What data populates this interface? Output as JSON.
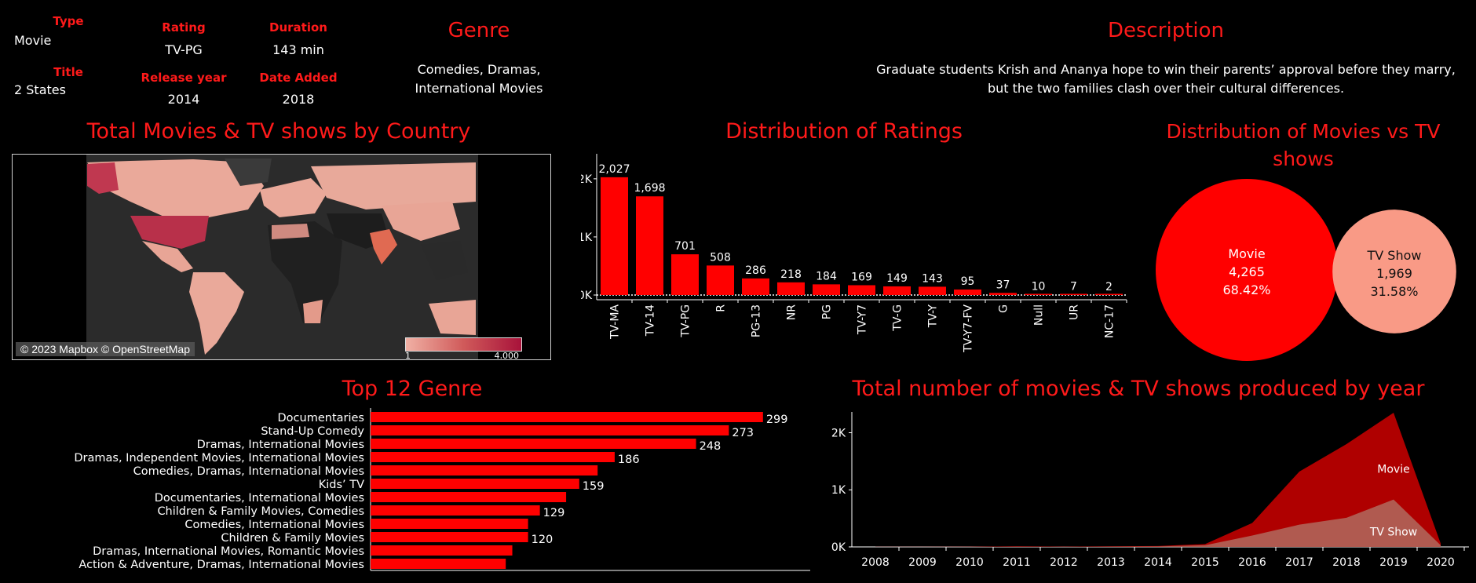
{
  "details": {
    "type": {
      "label": "Type",
      "value": "Movie"
    },
    "title": {
      "label": "Title",
      "value": "2 States"
    },
    "rating": {
      "label": "Rating",
      "value": "TV-PG"
    },
    "release_year": {
      "label": "Release year",
      "value": "2014"
    },
    "duration": {
      "label": "Duration",
      "value": "143 min"
    },
    "date_added": {
      "label": "Date Added",
      "value": "2018"
    },
    "genre": {
      "label": "Genre",
      "value": "Comedies, Dramas, International Movies"
    },
    "description": {
      "label": "Description",
      "value": "Graduate students Krish and Ananya hope to win their parents’ approval before they marry, but the two families clash over their cultural differences."
    }
  },
  "colors": {
    "accent": "#ff1a1a",
    "bar": "#ff0000",
    "movie": "#ff0000",
    "tvshow": "#f99a86",
    "background": "#000000"
  },
  "map": {
    "title": "Total Movies & TV shows by Country",
    "credit": "© 2023 Mapbox © OpenStreetMap",
    "legend_low": "1",
    "legend_high": "4,000"
  },
  "chart_data": [
    {
      "type": "bar",
      "title": "Distribution of Ratings",
      "categories": [
        "TV-MA",
        "TV-14",
        "TV-PG",
        "R",
        "PG-13",
        "NR",
        "PG",
        "TV-Y7",
        "TV-G",
        "TV-Y",
        "TV-Y7-FV",
        "G",
        "Null",
        "UR",
        "NC-17"
      ],
      "values": [
        2027,
        1698,
        701,
        508,
        286,
        218,
        184,
        169,
        149,
        143,
        95,
        37,
        10,
        7,
        2
      ],
      "value_labels": [
        "2,027",
        "1,698",
        "701",
        "508",
        "286",
        "218",
        "184",
        "169",
        "149",
        "143",
        "95",
        "37",
        "10",
        "7",
        "2"
      ],
      "yticks": [
        "0K",
        "1K",
        "2K"
      ],
      "ylim": [
        0,
        2400
      ]
    },
    {
      "type": "bubble",
      "title": "Distribution of Movies vs TV shows",
      "items": [
        {
          "label": "Movie",
          "value_text": "4,265",
          "share": "68.42%",
          "value": 4265
        },
        {
          "label": "TV Show",
          "value_text": "1,969",
          "share": "31.58%",
          "value": 1969
        }
      ]
    },
    {
      "type": "bar",
      "orientation": "horizontal",
      "title": "Top 12 Genre",
      "categories": [
        "Documentaries",
        "Stand-Up Comedy",
        "Dramas, International Movies",
        "Dramas, Independent Movies, International Movies",
        "Comedies, Dramas, International Movies",
        "Kids’ TV",
        "Documentaries, International Movies",
        "Children & Family Movies, Comedies",
        "Comedies, International Movies",
        "Children & Family Movies",
        "Dramas, International Movies, Romantic Movies",
        "Action & Adventure, Dramas, International Movies"
      ],
      "values": [
        299,
        273,
        248,
        186,
        173,
        159,
        149,
        129,
        120,
        120,
        108,
        103
      ],
      "value_labels": [
        "299",
        "273",
        "248",
        "186",
        "",
        "159",
        "",
        "129",
        "",
        "120",
        "",
        ""
      ],
      "xlim": [
        0,
        335
      ]
    },
    {
      "type": "area",
      "title": "Total number of movies & TV shows produced by year",
      "x": [
        "2008",
        "2009",
        "2010",
        "2011",
        "2012",
        "2013",
        "2014",
        "2015",
        "2016",
        "2017",
        "2018",
        "2019",
        "2020"
      ],
      "series": [
        {
          "name": "Movie",
          "values": [
            1,
            2,
            3,
            10,
            6,
            10,
            15,
            50,
            420,
            1320,
            1800,
            2350,
            60
          ]
        },
        {
          "name": "TV Show",
          "values": [
            0,
            0,
            0,
            3,
            2,
            5,
            8,
            30,
            200,
            390,
            510,
            830,
            30
          ]
        }
      ],
      "yticks": [
        "0K",
        "1K",
        "2K"
      ],
      "ylim": [
        0,
        2450
      ]
    }
  ]
}
